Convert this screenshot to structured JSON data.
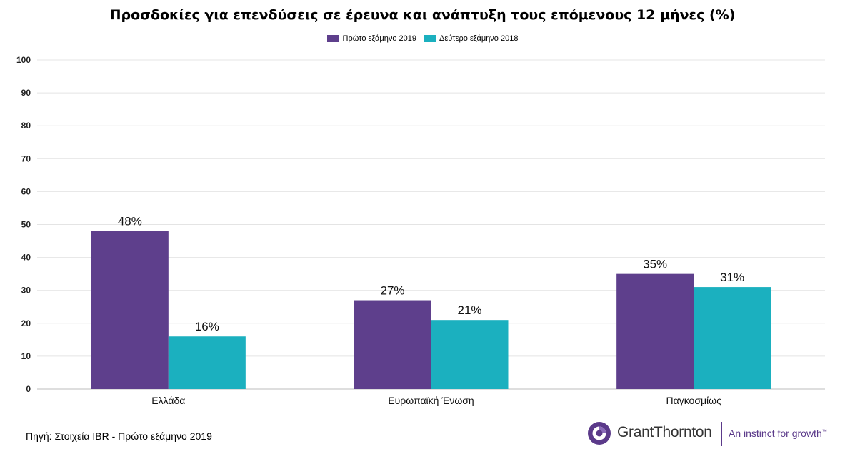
{
  "chart_data": {
    "type": "bar",
    "title": "Προσδοκίες για επενδύσεις σε έρευνα και ανάπτυξη τους επόμενους 12 μήνες (%)",
    "categories": [
      "Ελλάδα",
      "Ευρωπαϊκή Ένωση",
      "Παγκοσμίως"
    ],
    "series": [
      {
        "name": "Πρώτο εξάμηνο 2019",
        "values": [
          48,
          27,
          35
        ],
        "labels": [
          "48%",
          "27%",
          "35%"
        ],
        "color": "#5e3f8c"
      },
      {
        "name": "Δεύτερο εξάμηνο 2018",
        "values": [
          16,
          21,
          31
        ],
        "labels": [
          "16%",
          "21%",
          "31%"
        ],
        "color": "#1bb0bf"
      }
    ],
    "ylim": [
      0,
      100
    ],
    "yticks": [
      0,
      10,
      20,
      30,
      40,
      50,
      60,
      70,
      80,
      90,
      100
    ],
    "grid": true,
    "legend_position": "top-center"
  },
  "source_text": "Πηγή: Στοιχεία IBR - Πρώτο εξάμηνο 2019",
  "logo": {
    "name": "GrantThornton",
    "tagline": "An instinct for growth",
    "trademark": "™",
    "color": "#5b3a8a"
  }
}
